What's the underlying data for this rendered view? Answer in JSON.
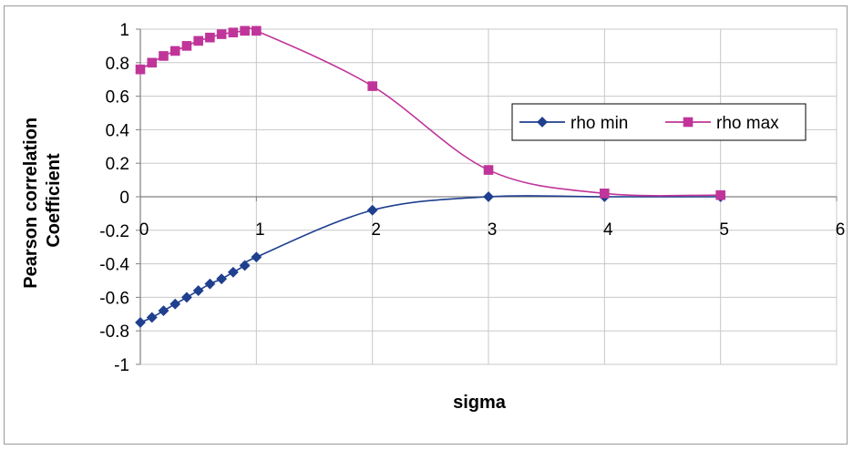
{
  "chart_data": {
    "type": "line",
    "title": "",
    "xlabel": "sigma",
    "ylabel_lines": [
      "Pearson correlation",
      "Coefficient"
    ],
    "xlim": [
      0,
      6
    ],
    "ylim": [
      -1,
      1
    ],
    "x_ticks": [
      "0",
      "1",
      "2",
      "3",
      "4",
      "5",
      "6"
    ],
    "y_ticks": [
      "1",
      "0.8",
      "0.6",
      "0.4",
      "0.2",
      "0",
      "-0.2",
      "-0.4",
      "-0.6",
      "-0.8",
      "-1"
    ],
    "grid": true,
    "legend_position": "right",
    "series": [
      {
        "name": "rho min",
        "color": "#1f3f8f",
        "marker": "diamond",
        "x": [
          0,
          0.1,
          0.2,
          0.3,
          0.4,
          0.5,
          0.6,
          0.7,
          0.8,
          0.9,
          1,
          2,
          3,
          4,
          5
        ],
        "y": [
          -0.75,
          -0.72,
          -0.68,
          -0.64,
          -0.6,
          -0.56,
          -0.52,
          -0.49,
          -0.45,
          -0.41,
          -0.36,
          -0.08,
          0.0,
          0.0,
          0.0
        ]
      },
      {
        "name": "rho max",
        "color": "#c0359a",
        "marker": "square",
        "x": [
          0,
          0.1,
          0.2,
          0.3,
          0.4,
          0.5,
          0.6,
          0.7,
          0.8,
          0.9,
          1,
          2,
          3,
          4,
          5
        ],
        "y": [
          0.76,
          0.8,
          0.84,
          0.87,
          0.9,
          0.93,
          0.95,
          0.97,
          0.98,
          0.99,
          0.99,
          0.66,
          0.16,
          0.02,
          0.01
        ]
      }
    ]
  }
}
